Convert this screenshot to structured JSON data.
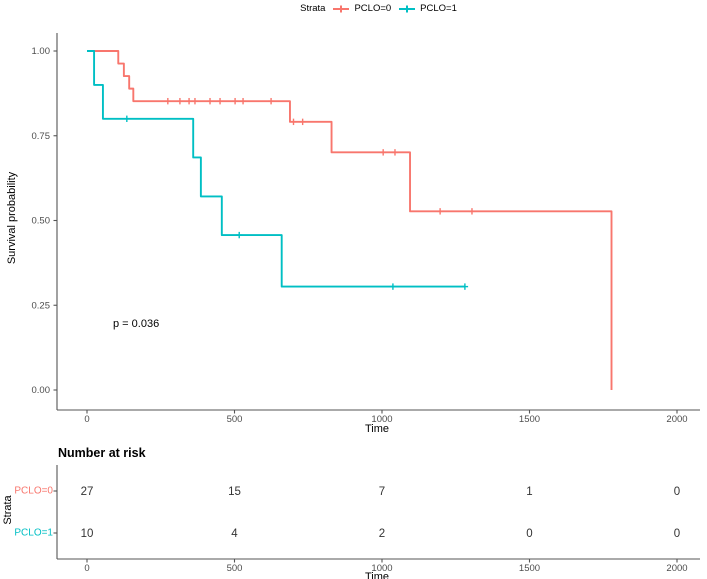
{
  "legend": {
    "title": "Strata",
    "items": [
      {
        "label": "PCLO=0",
        "color": "#F8766D"
      },
      {
        "label": "PCLO=1",
        "color": "#00BFC4"
      }
    ]
  },
  "chart_data": {
    "type": "line",
    "subtype": "kaplan-meier-step",
    "title": "",
    "xlabel": "Time",
    "ylabel": "Survival probability",
    "xlim": [
      0,
      2000
    ],
    "ylim": [
      0.0,
      1.0
    ],
    "x_ticks": [
      0,
      500,
      1000,
      1500,
      2000
    ],
    "y_ticks": [
      "0.00",
      "0.25",
      "0.50",
      "0.75",
      "1.00"
    ],
    "grid": false,
    "legend_position": "top",
    "annotation": "p = 0.036",
    "series": [
      {
        "name": "PCLO=0",
        "color": "#F8766D",
        "steps": [
          [
            0,
            1.0
          ],
          [
            106,
            0.963
          ],
          [
            125,
            0.926
          ],
          [
            143,
            0.889
          ],
          [
            157,
            0.852
          ],
          [
            688,
            0.791
          ],
          [
            829,
            0.701
          ],
          [
            1095,
            0.527
          ],
          [
            1778,
            0.0
          ]
        ],
        "end_time": 1778,
        "censors": [
          [
            274,
            0.852
          ],
          [
            315,
            0.852
          ],
          [
            346,
            0.852
          ],
          [
            366,
            0.852
          ],
          [
            417,
            0.852
          ],
          [
            451,
            0.852
          ],
          [
            502,
            0.852
          ],
          [
            529,
            0.852
          ],
          [
            624,
            0.852
          ],
          [
            700,
            0.791
          ],
          [
            731,
            0.791
          ],
          [
            1004,
            0.701
          ],
          [
            1044,
            0.701
          ],
          [
            1197,
            0.527
          ],
          [
            1305,
            0.527
          ]
        ]
      },
      {
        "name": "PCLO=1",
        "color": "#00BFC4",
        "steps": [
          [
            0,
            1.0
          ],
          [
            24,
            0.9
          ],
          [
            54,
            0.8
          ],
          [
            360,
            0.686
          ],
          [
            386,
            0.571
          ],
          [
            457,
            0.457
          ],
          [
            660,
            0.305
          ]
        ],
        "end_time": 1281,
        "censors": [
          [
            135,
            0.8
          ],
          [
            516,
            0.457
          ],
          [
            1037,
            0.305
          ],
          [
            1281,
            0.305
          ]
        ]
      }
    ]
  },
  "risk_table": {
    "title": "Number at risk",
    "ylabel": "Strata",
    "xlabel": "Time",
    "x_ticks": [
      0,
      500,
      1000,
      1500,
      2000
    ],
    "rows": [
      {
        "label": "PCLO=0",
        "color": "#F8766D",
        "values": [
          "27",
          "15",
          "7",
          "1",
          "0"
        ]
      },
      {
        "label": "PCLO=1",
        "color": "#00BFC4",
        "values": [
          "10",
          "4",
          "2",
          "0",
          "0"
        ]
      }
    ]
  },
  "style": {
    "axis_color": "#555555",
    "tick_text_color": "#4d4d4d",
    "number_color": "#333333"
  }
}
